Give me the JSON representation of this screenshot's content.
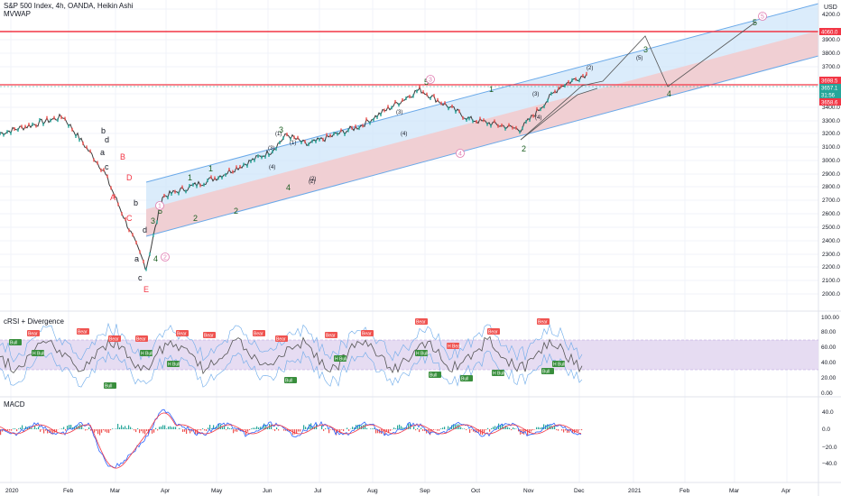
{
  "header": {
    "title": "S&P 500 Index, 4h, OANDA, Heikin Ashi",
    "indicator": "MVWAP"
  },
  "price_axis": {
    "currency": "USD",
    "ticks": [
      "4200.0",
      "4000.0",
      "3900.0",
      "3800.0",
      "3700.0",
      "3500.0",
      "3400.0",
      "3300.0",
      "3200.0",
      "3100.0",
      "3000.0",
      "2900.0",
      "2800.0",
      "2700.0",
      "2600.0",
      "2500.0",
      "2400.0",
      "2300.0",
      "2200.0",
      "2100.0",
      "2000.0"
    ],
    "badges": [
      {
        "text": "4060.0",
        "color": "#f23645"
      },
      {
        "text": "3698.5",
        "color": "#f23645"
      },
      {
        "text": "3657.1",
        "color": "#26a69a"
      },
      {
        "text": "31:56",
        "color": "#26a69a"
      },
      {
        "text": "3658.6",
        "color": "#f23645"
      }
    ]
  },
  "time_axis": [
    "2020",
    "Feb",
    "Mar",
    "Apr",
    "May",
    "Jun",
    "Jul",
    "Aug",
    "Sep",
    "Oct",
    "Nov",
    "Dec",
    "2021",
    "Feb",
    "Mar",
    "Apr"
  ],
  "wave_labels": [
    {
      "text": "b"
    },
    {
      "text": "d"
    },
    {
      "text": "a"
    },
    {
      "text": "c"
    },
    {
      "text": "B"
    },
    {
      "text": "A"
    },
    {
      "text": "D"
    },
    {
      "text": "b"
    },
    {
      "text": "C"
    },
    {
      "text": "d"
    },
    {
      "text": "a"
    },
    {
      "text": "c"
    },
    {
      "text": "E"
    },
    {
      "text": "3"
    },
    {
      "text": "5"
    },
    {
      "text": "1"
    },
    {
      "text": "2"
    },
    {
      "text": "4"
    },
    {
      "text": "1"
    },
    {
      "text": "2"
    },
    {
      "text": "(1)"
    },
    {
      "text": "(2)"
    },
    {
      "text": "3"
    },
    {
      "text": "(3)"
    },
    {
      "text": "(1)"
    },
    {
      "text": "(4)"
    },
    {
      "text": "4"
    },
    {
      "text": "(2)"
    },
    {
      "text": "5"
    },
    {
      "text": "(3)"
    },
    {
      "text": "(4)"
    },
    {
      "text": "1"
    },
    {
      "text": "2"
    },
    {
      "text": "(3)"
    },
    {
      "text": "(4)"
    },
    {
      "text": "(2)"
    },
    {
      "text": "3"
    },
    {
      "text": "(5)"
    },
    {
      "text": "4"
    },
    {
      "text": "5"
    }
  ],
  "circled_labels": [
    {
      "text": "1"
    },
    {
      "text": "2"
    },
    {
      "text": "3"
    },
    {
      "text": "4"
    },
    {
      "text": "5"
    }
  ],
  "rsi_panel": {
    "title": "cRSI + Divergence",
    "ticks": [
      "100.00",
      "80.00",
      "60.00",
      "40.00",
      "20.00",
      "0.00"
    ],
    "badges": [
      "Bear",
      "Bull",
      "H Bull",
      "H Bear"
    ]
  },
  "macd_panel": {
    "title": "MACD",
    "ticks": [
      "40.0",
      "0.0",
      "−20.0",
      "−40.0"
    ]
  },
  "chart_data": {
    "type": "line",
    "x": [
      "2020-01",
      "2020-02",
      "2020-03",
      "2020-03-23",
      "2020-04",
      "2020-05",
      "2020-06",
      "2020-06-08",
      "2020-07",
      "2020-08",
      "2020-09-02",
      "2020-10",
      "2020-10-30",
      "2020-11",
      "2020-12"
    ],
    "series": [
      {
        "values": [
          3240,
          3370,
          2950,
          2200,
          2750,
          2900,
          3100,
          3230,
          3150,
          3300,
          3580,
          3350,
          3270,
          3600,
          3700
        ]
      }
    ],
    "ylim": [
      2000,
      4250
    ],
    "horizontal_levels": [
      4060.0,
      3698.5,
      3658.6
    ],
    "last_price": 3657.1
  }
}
